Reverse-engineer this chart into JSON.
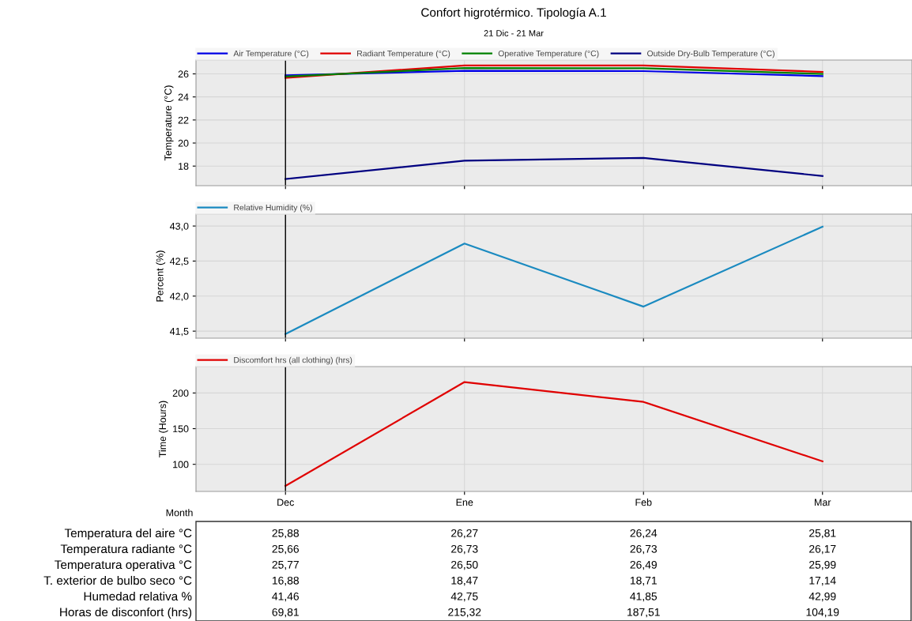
{
  "chart_data": [
    {
      "type": "line",
      "title": "Confort higrotérmico. Tipología A.1",
      "subtitle": "21 Dic - 21 Mar",
      "ylabel": "Temperature (°C)",
      "categories": [
        "Dec",
        "Ene",
        "Feb",
        "Mar"
      ],
      "series": [
        {
          "name": "Air Temperature (°C)",
          "color": "#0000e6",
          "values": [
            25.88,
            26.27,
            26.24,
            25.81
          ],
          "value_labels": [
            "25,88",
            "26,27",
            "26,24",
            "25,81"
          ]
        },
        {
          "name": "Radiant Temperature (°C)",
          "color": "#e00000",
          "values": [
            25.66,
            26.73,
            26.73,
            26.17
          ],
          "value_labels": [
            "25,66",
            "26,73",
            "26,73",
            "26,17"
          ]
        },
        {
          "name": "Operative Temperature (°C)",
          "color": "#008000",
          "values": [
            25.77,
            26.5,
            26.49,
            25.99
          ],
          "value_labels": [
            "25,77",
            "26,50",
            "26,49",
            "25,99"
          ]
        },
        {
          "name": "Outside Dry-Bulb Temperature (°C)",
          "color": "#000080",
          "values": [
            16.88,
            18.47,
            18.71,
            17.14
          ],
          "value_labels": [
            "16,88",
            "18,47",
            "18,71",
            "17,14"
          ]
        }
      ],
      "annotations": [
        "Temperatura del aire °C",
        "Temperatura radiante °C",
        "Temperatura operativa °C",
        "T. exterior de bulbo seco °C"
      ],
      "ylim": [
        16.3,
        27.2
      ],
      "yticks": [
        18,
        20,
        22,
        24,
        26
      ],
      "grid": true,
      "legend": "top left",
      "tick_labels": "y",
      "line_style": "solid",
      "ref_lines": [
        {
          "axis": "x",
          "value": "Dec",
          "color": "#000000"
        }
      ]
    },
    {
      "type": "line",
      "ylabel": "Percent (%)",
      "categories": [
        "Dec",
        "Ene",
        "Feb",
        "Mar"
      ],
      "series": [
        {
          "name": "Relative Humidity (%)",
          "color": "#1a8ac0",
          "values": [
            41.46,
            42.75,
            41.85,
            42.99
          ],
          "value_labels": [
            "41,46",
            "42,75",
            "41,85",
            "42,99"
          ]
        }
      ],
      "annotations": [
        "Humedad relativa %"
      ],
      "ylim": [
        41.4,
        43.17
      ],
      "yticks": [
        {
          "value": 41.5,
          "label": "41,5"
        },
        {
          "value": 42.0,
          "label": "42,0"
        },
        {
          "value": 42.5,
          "label": "42,5"
        },
        {
          "value": 43.0,
          "label": "43,0"
        }
      ],
      "grid": true,
      "legend": "top left",
      "tick_labels": "y",
      "line_style": "solid",
      "ref_lines": [
        {
          "axis": "x",
          "value": "Dec",
          "color": "#000000"
        }
      ]
    },
    {
      "type": "line",
      "ylabel": "Time (Hours)",
      "xlabel": "Month",
      "categories": [
        "Dec",
        "Ene",
        "Feb",
        "Mar"
      ],
      "series": [
        {
          "name": "Discomfort hrs (all clothing) (hrs)",
          "color": "#e00000",
          "values": [
            69.81,
            215.32,
            187.51,
            104.19
          ],
          "value_labels": [
            "69,81",
            "215,32",
            "187,51",
            "104,19"
          ]
        }
      ],
      "annotations": [
        "Horas de disconfort (hrs)"
      ],
      "ylim": [
        62,
        237
      ],
      "yticks": [
        100,
        150,
        200
      ],
      "grid": true,
      "legend": "top left",
      "line_style": "solid",
      "ref_lines": [
        {
          "axis": "x",
          "value": "Dec",
          "color": "#000000"
        }
      ]
    }
  ]
}
